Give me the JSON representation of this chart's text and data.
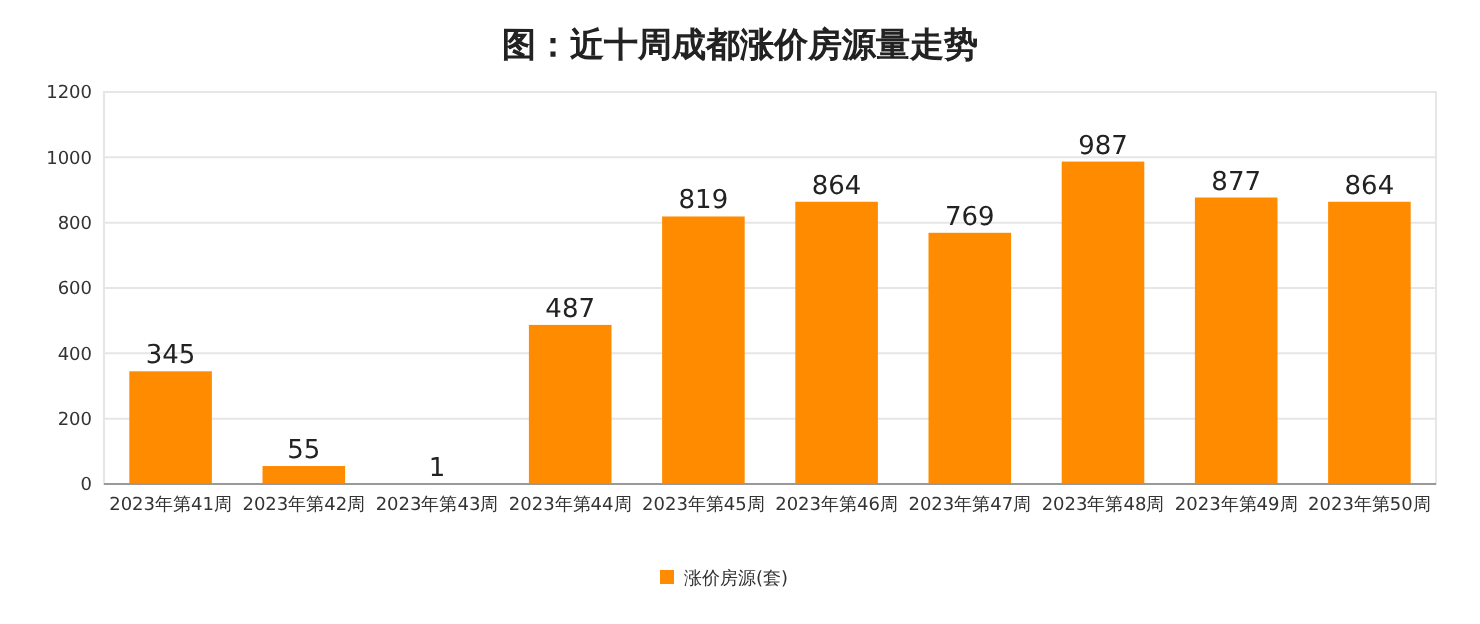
{
  "chart_data": {
    "type": "bar",
    "title": "图：近十周成都涨价房源量走势",
    "categories": [
      "2023年第41周",
      "2023年第42周",
      "2023年第43周",
      "2023年第44周",
      "2023年第45周",
      "2023年第46周",
      "2023年第47周",
      "2023年第48周",
      "2023年第49周",
      "2023年第50周"
    ],
    "series": [
      {
        "name": "涨价房源(套)",
        "color": "#ff8c00",
        "values": [
          345,
          55,
          1,
          487,
          819,
          864,
          769,
          987,
          877,
          864
        ]
      }
    ],
    "ylim": [
      0,
      1200
    ],
    "yticks": [
      0,
      200,
      400,
      600,
      800,
      1000,
      1200
    ],
    "grid": "y",
    "legend": "bottom",
    "data_labels": true
  }
}
